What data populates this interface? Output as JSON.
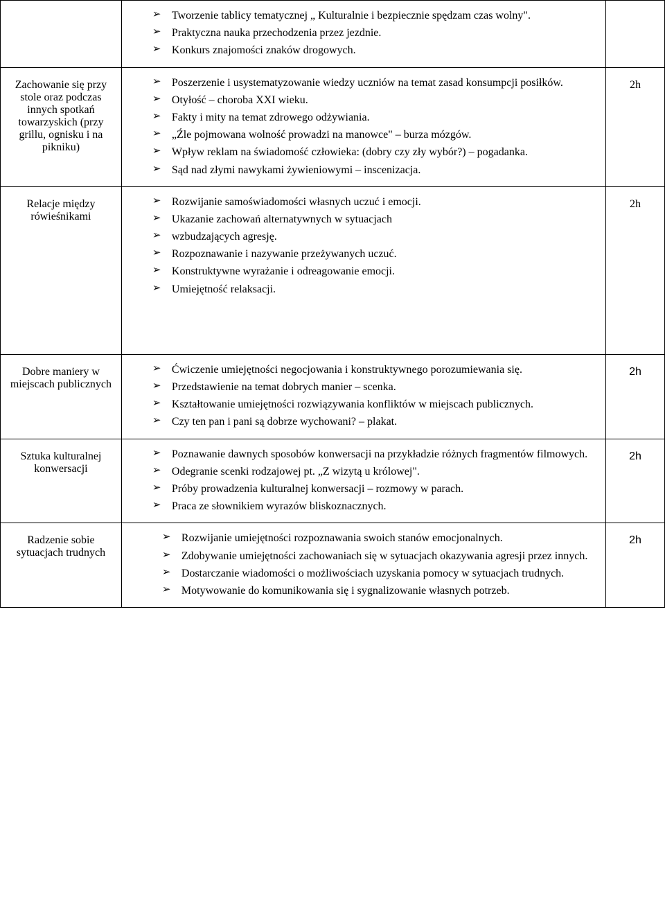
{
  "rows": [
    {
      "topic": "",
      "items": [
        "Tworzenie tablicy tematycznej „ Kulturalnie i bezpiecznie spędzam czas wolny\".",
        "Praktyczna nauka przechodzenia przez jezdnie.",
        "Konkurs znajomości znaków drogowych."
      ],
      "duration": ""
    },
    {
      "topic": "Zachowanie się przy stole oraz podczas innych spotkań towarzyskich (przy grillu, ognisku i na pikniku)",
      "items": [
        "Poszerzenie i usystematyzowanie wiedzy uczniów na temat zasad konsumpcji posiłków.",
        "Otyłość – choroba XXI wieku.",
        "Fakty i mity na temat zdrowego odżywiania.",
        " „Źle pojmowana wolność prowadzi na manowce\" – burza mózgów.",
        "Wpływ reklam na świadomość człowieka: (dobry czy zły wybór?) – pogadanka.",
        "Sąd nad złymi nawykami żywieniowymi – inscenizacja."
      ],
      "duration": "2h"
    },
    {
      "topic": "Relacje między rówieśnikami",
      "items": [
        "Rozwijanie samoświadomości własnych uczuć i emocji.",
        "Ukazanie zachowań alternatywnych w   sytuacjach",
        "wzbudzających agresję.",
        "Rozpoznawanie i nazywanie przeżywanych uczuć.",
        "Konstruktywne wyrażanie i odreagowanie emocji.",
        "Umiejętność relaksacji."
      ],
      "duration": "2h",
      "extra_space": true
    },
    {
      "topic": "Dobre maniery w miejscach publicznych",
      "items": [
        "Ćwiczenie umiejętności negocjowania i konstruktywnego porozumiewania się.",
        "Przedstawienie na temat dobrych manier – scenka.",
        "Kształtowanie umiejętności rozwiązywania konfliktów w miejscach publicznych.",
        "Czy ten pan i pani są dobrze wychowani? – plakat."
      ],
      "duration": "2h",
      "duration_font": "arial"
    },
    {
      "topic": "Sztuka  kulturalnej konwersacji",
      "items": [
        "Poznawanie dawnych sposobów konwersacji na przykładzie różnych fragmentów filmowych.",
        "Odegranie scenki rodzajowej pt. „Z wizytą u królowej\".",
        "Próby prowadzenia kulturalnej konwersacji – rozmowy w parach.",
        "Praca ze słownikiem wyrazów bliskoznacznych."
      ],
      "duration": "2h",
      "duration_font": "arial"
    },
    {
      "topic": "Radzenie sobie sytuacjach trudnych",
      "items": [
        "Rozwijanie umiejętności rozpoznawania swoich stanów emocjonalnych.",
        "Zdobywanie umiejętności zachowaniach się w sytuacjach okazywania agresji przez innych.",
        "Dostarczanie wiadomości o możliwościach uzyskania pomocy w sytuacjach trudnych.",
        "Motywowanie do komunikowania się i sygnalizowanie własnych potrzeb."
      ],
      "duration": "2h",
      "duration_font": "arial",
      "indent": "small-indent"
    }
  ]
}
